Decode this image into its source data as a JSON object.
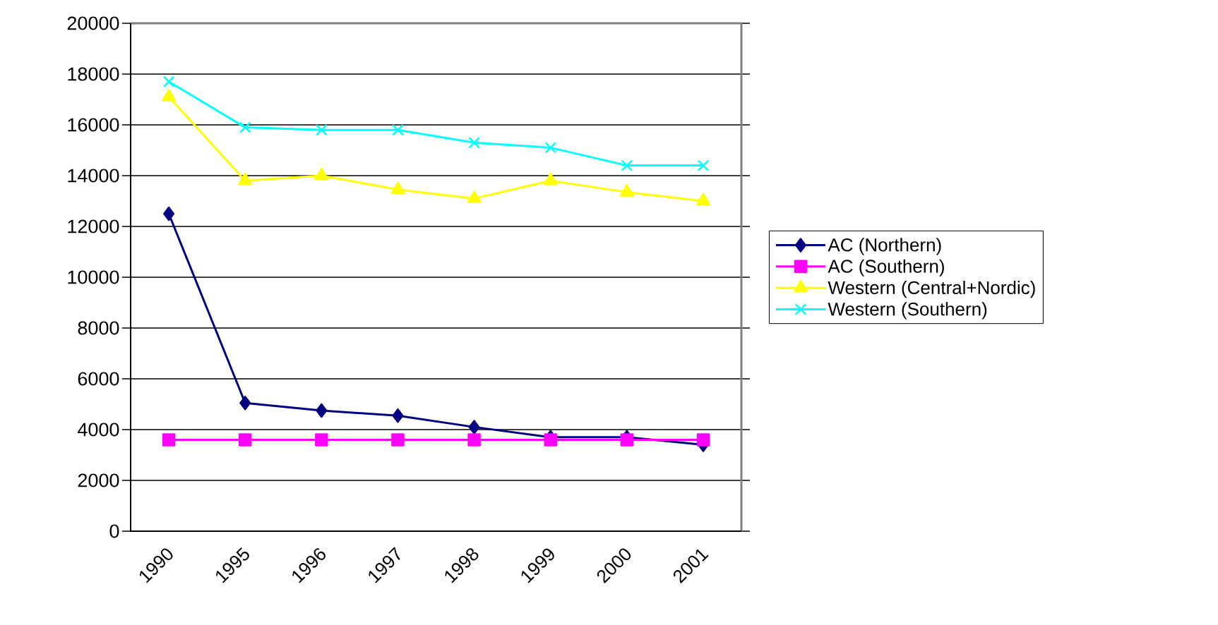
{
  "chart_data": {
    "type": "line",
    "categories": [
      "1990",
      "1995",
      "1996",
      "1997",
      "1998",
      "1999",
      "2000",
      "2001"
    ],
    "ylim": [
      0,
      20000
    ],
    "yticks": [
      0,
      2000,
      4000,
      6000,
      8000,
      10000,
      12000,
      14000,
      16000,
      18000,
      20000
    ],
    "grid": "y",
    "legend": "right",
    "line_style": "solid",
    "series": [
      {
        "name": "AC (Northern)",
        "color": "#000080",
        "marker": "diamond",
        "values": [
          12500,
          5050,
          4750,
          4550,
          4100,
          3700,
          3700,
          3400
        ]
      },
      {
        "name": "AC (Southern)",
        "color": "#ff00ff",
        "marker": "square",
        "values": [
          3600,
          3600,
          3600,
          3600,
          3600,
          3600,
          3600,
          3600
        ]
      },
      {
        "name": "Western (Central+Nordic)",
        "color": "#ffff00",
        "marker": "triangle",
        "values": [
          17100,
          13800,
          14000,
          13450,
          13100,
          13800,
          13350,
          13000
        ]
      },
      {
        "name": "Western (Southern)",
        "color": "#00ffff",
        "marker": "cross",
        "values": [
          17700,
          15900,
          15800,
          15800,
          15300,
          15100,
          14400,
          14400
        ]
      }
    ]
  }
}
